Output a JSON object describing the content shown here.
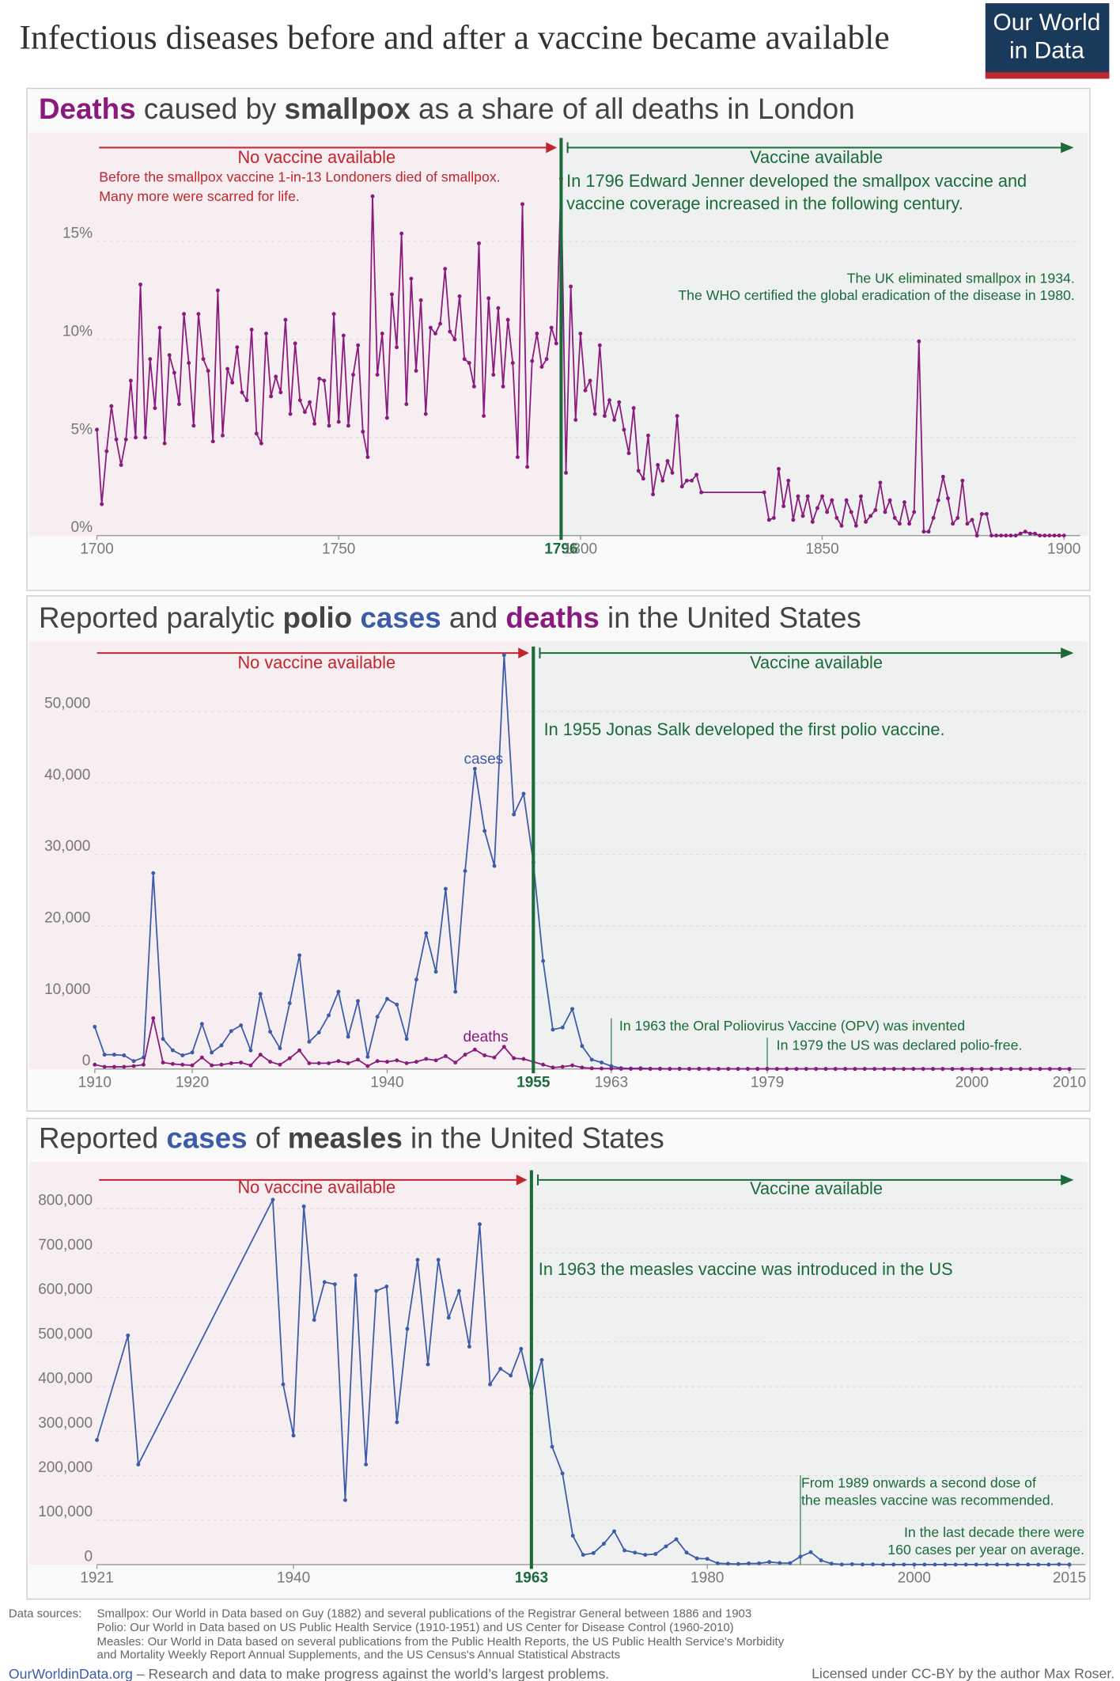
{
  "title": "Infectious diseases before and after a vaccine became available",
  "logo": {
    "line1": "Our World",
    "line2": "in Data"
  },
  "chart_data": [
    {
      "type": "line",
      "title": [
        {
          "text": "Deaths",
          "bold": true,
          "color": "#8b1a7e"
        },
        {
          "text": " caused by "
        },
        {
          "text": "smallpox",
          "bold": true
        },
        {
          "text": " as a share of all deaths in London"
        }
      ],
      "x": [
        1700,
        1701,
        1702,
        1703,
        1704,
        1705,
        1706,
        1707,
        1708,
        1709,
        1710,
        1711,
        1712,
        1713,
        1714,
        1715,
        1716,
        1717,
        1718,
        1719,
        1720,
        1721,
        1722,
        1723,
        1724,
        1725,
        1726,
        1727,
        1728,
        1729,
        1730,
        1731,
        1732,
        1733,
        1734,
        1735,
        1736,
        1737,
        1738,
        1739,
        1740,
        1741,
        1742,
        1743,
        1744,
        1745,
        1746,
        1747,
        1748,
        1749,
        1750,
        1751,
        1752,
        1753,
        1754,
        1755,
        1756,
        1757,
        1758,
        1759,
        1760,
        1761,
        1762,
        1763,
        1764,
        1765,
        1766,
        1767,
        1768,
        1769,
        1770,
        1771,
        1772,
        1773,
        1774,
        1775,
        1776,
        1777,
        1778,
        1779,
        1780,
        1781,
        1782,
        1783,
        1784,
        1785,
        1786,
        1787,
        1788,
        1789,
        1790,
        1791,
        1792,
        1793,
        1794,
        1795,
        1796,
        1797,
        1798,
        1799,
        1800,
        1801,
        1802,
        1803,
        1804,
        1805,
        1806,
        1807,
        1808,
        1809,
        1810,
        1811,
        1812,
        1813,
        1814,
        1815,
        1816,
        1817,
        1818,
        1819,
        1820,
        1821,
        1822,
        1823,
        1824,
        1825,
        1838,
        1839,
        1840,
        1841,
        1842,
        1843,
        1844,
        1845,
        1846,
        1847,
        1848,
        1849,
        1850,
        1851,
        1852,
        1853,
        1854,
        1855,
        1856,
        1857,
        1858,
        1859,
        1860,
        1861,
        1862,
        1863,
        1864,
        1865,
        1866,
        1867,
        1868,
        1869,
        1870,
        1871,
        1872,
        1873,
        1874,
        1875,
        1876,
        1877,
        1878,
        1879,
        1880,
        1881,
        1882,
        1883,
        1884,
        1885,
        1886,
        1887,
        1888,
        1889,
        1890,
        1891,
        1892,
        1893,
        1894,
        1895,
        1896,
        1897,
        1898,
        1899,
        1900
      ],
      "values": [
        5.4,
        1.6,
        4.3,
        6.6,
        4.9,
        3.6,
        4.9,
        7.9,
        5.0,
        12.8,
        5.0,
        9.0,
        6.5,
        10.6,
        4.7,
        9.2,
        8.3,
        6.7,
        11.3,
        8.8,
        5.6,
        11.3,
        9.0,
        8.4,
        4.8,
        12.5,
        5.1,
        8.5,
        7.8,
        9.6,
        7.3,
        6.9,
        10.5,
        5.2,
        4.7,
        10.3,
        7.1,
        8.1,
        7.3,
        11.0,
        6.2,
        9.8,
        6.9,
        6.3,
        6.8,
        5.7,
        8.0,
        7.9,
        5.6,
        11.3,
        5.8,
        10.2,
        5.6,
        8.2,
        9.7,
        5.3,
        4.0,
        17.3,
        8.2,
        10.3,
        6.0,
        12.3,
        9.6,
        15.4,
        6.7,
        13.1,
        8.4,
        12.0,
        6.2,
        10.6,
        10.3,
        10.8,
        13.6,
        10.4,
        10.0,
        12.2,
        9.0,
        8.8,
        7.6,
        14.9,
        6.1,
        12.1,
        8.2,
        11.6,
        7.6,
        11.0,
        8.8,
        4.0,
        16.9,
        3.5,
        8.9,
        10.3,
        8.6,
        9.0,
        10.6,
        9.8,
        18.2,
        3.2,
        12.7,
        5.9,
        10.3,
        7.4,
        7.9,
        6.2,
        9.7,
        6.1,
        6.9,
        5.9,
        6.8,
        5.4,
        4.2,
        6.5,
        3.3,
        2.9,
        5.1,
        2.1,
        3.6,
        2.8,
        3.8,
        3.2,
        6.1,
        2.5,
        2.8,
        2.8,
        3.1,
        2.2,
        2.2,
        0.8,
        0.9,
        3.4,
        1.5,
        2.8,
        0.8,
        2.0,
        1.0,
        2.0,
        0.7,
        1.4,
        2.0,
        1.2,
        1.8,
        0.9,
        0.5,
        1.8,
        1.2,
        0.5,
        2.0,
        0.7,
        1.0,
        1.3,
        2.7,
        1.2,
        1.8,
        0.9,
        0.6,
        1.7,
        0.6,
        1.2,
        9.9,
        0.2,
        0.2,
        0.9,
        1.8,
        3.0,
        1.9,
        0.6,
        0.9,
        2.8,
        0.6,
        0.8,
        0.0,
        1.1,
        1.1,
        0.0,
        0.0,
        0.0,
        0.0,
        0.0,
        0.0,
        0.1,
        0.2,
        0.1,
        0.1,
        0.0,
        0.0,
        0.0,
        0.0,
        0.0,
        0.0
      ],
      "color": "#8b1a7e",
      "xlim": [
        1700,
        1900
      ],
      "xticks": [
        1700,
        1750,
        1796,
        1800,
        1850,
        1900
      ],
      "ylim": [
        0,
        20
      ],
      "yticks": [
        {
          "value": 0,
          "label": "0%"
        },
        {
          "value": 5,
          "label": "5%"
        },
        {
          "value": 10,
          "label": "10%"
        },
        {
          "value": 15,
          "label": "15%"
        }
      ],
      "grid": true,
      "vaccine_year": 1796,
      "annotations": [
        {
          "lines": [
            "No vaccine available"
          ],
          "color": "#c0262d"
        },
        {
          "lines": [
            "Vaccine available"
          ],
          "color": "#1b6b3a"
        },
        {
          "lines": [
            "Before the smallpox vaccine 1-in-13 Londoners died of smallpox.",
            "Many more were scarred for life."
          ],
          "color": "#c0262d"
        },
        {
          "lines": [
            "In 1796 Edward Jenner developed the smallpox vaccine and",
            "vaccine coverage increased in the following century."
          ],
          "color": "#1b6b3a"
        },
        {
          "lines": [
            "The UK eliminated smallpox in 1934.",
            "The WHO certified the global eradication of the disease in 1980."
          ],
          "color": "#1b6b3a"
        }
      ]
    },
    {
      "type": "line",
      "title": [
        {
          "text": "Reported paralytic "
        },
        {
          "text": "polio",
          "bold": true
        },
        {
          "text": " cases",
          "bold": true,
          "color": "#3c5ba8"
        },
        {
          "text": " and "
        },
        {
          "text": "deaths",
          "bold": true,
          "color": "#8b1a7e"
        },
        {
          "text": " in the United States"
        }
      ],
      "x": [
        1910,
        1911,
        1912,
        1913,
        1914,
        1915,
        1916,
        1917,
        1918,
        1919,
        1920,
        1921,
        1922,
        1923,
        1924,
        1925,
        1926,
        1927,
        1928,
        1929,
        1930,
        1931,
        1932,
        1933,
        1934,
        1935,
        1936,
        1937,
        1938,
        1939,
        1940,
        1941,
        1942,
        1943,
        1944,
        1945,
        1946,
        1947,
        1948,
        1949,
        1950,
        1951,
        1952,
        1953,
        1954,
        1955,
        1956,
        1957,
        1958,
        1959,
        1960,
        1961,
        1962,
        1963,
        1964,
        1965,
        1966,
        1967,
        1968,
        1969,
        1970,
        1971,
        1972,
        1973,
        1974,
        1975,
        1976,
        1977,
        1978,
        1979,
        1980,
        1981,
        1982,
        1983,
        1984,
        1985,
        1986,
        1987,
        1988,
        1989,
        1990,
        1991,
        1992,
        1993,
        1994,
        1995,
        1996,
        1997,
        1998,
        1999,
        2000,
        2001,
        2002,
        2003,
        2004,
        2005,
        2006,
        2007,
        2008,
        2009,
        2010
      ],
      "series": [
        {
          "name": "cases",
          "color": "#3c5ba8",
          "values": [
            5900,
            2000,
            2000,
            1900,
            1100,
            1600,
            27400,
            4200,
            2600,
            1900,
            2300,
            6300,
            2300,
            3300,
            5300,
            6100,
            2600,
            10500,
            5200,
            2900,
            9200,
            15900,
            3800,
            5100,
            7500,
            10800,
            4500,
            9500,
            1700,
            7300,
            9800,
            9000,
            4200,
            12500,
            19000,
            13600,
            25200,
            10800,
            27700,
            42000,
            33300,
            28400,
            57900,
            35600,
            38500,
            28900,
            15100,
            5500,
            5800,
            8400,
            3200,
            1300,
            900,
            400,
            120,
            70,
            110,
            40,
            50,
            20,
            30,
            20,
            30,
            10,
            10,
            10,
            10,
            20,
            20,
            30,
            10,
            10,
            10,
            10,
            10,
            10,
            10,
            10,
            10,
            10,
            10,
            10,
            10,
            10,
            10,
            10,
            10,
            10,
            0,
            0,
            0,
            0,
            0,
            0,
            0,
            0,
            0,
            0,
            0,
            0,
            0
          ]
        },
        {
          "name": "deaths",
          "color": "#8b1a7e",
          "values": [
            600,
            300,
            300,
            300,
            400,
            600,
            7100,
            900,
            700,
            600,
            500,
            1600,
            500,
            600,
            800,
            900,
            500,
            2000,
            1000,
            600,
            1500,
            2600,
            800,
            800,
            800,
            1100,
            800,
            1300,
            400,
            1100,
            1000,
            1200,
            800,
            1000,
            1400,
            1200,
            1800,
            900,
            2000,
            2700,
            1900,
            1600,
            3100,
            1500,
            1400,
            1000,
            600,
            200,
            300,
            500,
            200,
            90,
            60,
            40,
            20,
            15,
            10,
            5,
            5,
            5,
            5,
            5,
            5,
            5,
            5,
            5,
            5,
            5,
            5,
            5,
            0,
            0,
            0,
            0,
            0,
            0,
            0,
            0,
            0,
            0,
            0,
            0,
            0,
            0,
            0,
            0,
            0,
            0,
            0,
            0,
            0,
            0,
            0,
            0,
            0,
            0,
            0,
            0,
            0,
            0,
            0
          ]
        }
      ],
      "xlim": [
        1910,
        2010
      ],
      "xticks": [
        1910,
        1920,
        1940,
        1955,
        1963,
        1979,
        2000,
        2010
      ],
      "ylim": [
        0,
        60000
      ],
      "yticks": [
        0,
        {
          "value": 10000,
          "label": "10,000"
        },
        {
          "value": 20000,
          "label": "20,000"
        },
        {
          "value": 30000,
          "label": "30,000"
        },
        {
          "value": 40000,
          "label": "40,000"
        },
        {
          "value": 50000,
          "label": "50,000"
        }
      ],
      "grid": true,
      "vaccine_year": 1955,
      "annotations": [
        {
          "lines": [
            "No vaccine available"
          ],
          "color": "#c0262d"
        },
        {
          "lines": [
            "Vaccine available"
          ],
          "color": "#1b6b3a"
        },
        {
          "lines": [
            "In 1955 Jonas Salk developed the first polio vaccine."
          ],
          "color": "#1b6b3a"
        },
        {
          "lines": [
            "In 1963 the Oral Poliovirus Vaccine (OPV) was invented"
          ],
          "color": "#1b6b3a",
          "x": 1963
        },
        {
          "lines": [
            "In 1979 the US was declared polio-free."
          ],
          "color": "#1b6b3a",
          "x": 1979
        }
      ]
    },
    {
      "type": "line",
      "title": [
        {
          "text": "Reported "
        },
        {
          "text": "cases",
          "bold": true,
          "color": "#3c5ba8"
        },
        {
          "text": " of "
        },
        {
          "text": "measles",
          "bold": true
        },
        {
          "text": " in the United States"
        }
      ],
      "x": [
        1921,
        1924,
        1925,
        1938,
        1939,
        1940,
        1941,
        1942,
        1943,
        1944,
        1945,
        1946,
        1947,
        1948,
        1949,
        1950,
        1951,
        1952,
        1953,
        1954,
        1955,
        1956,
        1957,
        1958,
        1959,
        1960,
        1961,
        1962,
        1963,
        1964,
        1965,
        1966,
        1967,
        1968,
        1969,
        1970,
        1971,
        1972,
        1973,
        1974,
        1975,
        1976,
        1977,
        1978,
        1979,
        1980,
        1981,
        1982,
        1983,
        1984,
        1985,
        1986,
        1987,
        1988,
        1989,
        1990,
        1991,
        1992,
        1993,
        1994,
        1995,
        1996,
        1997,
        1998,
        1999,
        2000,
        2001,
        2002,
        2003,
        2004,
        2005,
        2006,
        2007,
        2008,
        2009,
        2010,
        2011,
        2012,
        2013,
        2014,
        2015
      ],
      "values": [
        280000,
        515000,
        225000,
        820000,
        405000,
        290000,
        805000,
        550000,
        635000,
        630000,
        145000,
        650000,
        225000,
        615000,
        625000,
        320000,
        530000,
        685000,
        450000,
        685000,
        555000,
        615000,
        490000,
        765000,
        405000,
        440000,
        425000,
        485000,
        385000,
        460000,
        265000,
        205000,
        65000,
        22000,
        26000,
        47000,
        75000,
        32000,
        27000,
        22000,
        24000,
        41000,
        57000,
        27000,
        14000,
        13000,
        3000,
        2000,
        1500,
        2600,
        2800,
        6000,
        3600,
        3400,
        18000,
        28000,
        9600,
        2200,
        300,
        1000,
        300,
        500,
        100,
        100,
        100,
        100,
        100,
        40,
        60,
        40,
        70,
        60,
        40,
        140,
        70,
        60,
        220,
        55,
        190,
        670,
        190
      ],
      "color": "#3c5ba8",
      "xlim": [
        1921,
        2015
      ],
      "xticks": [
        1921,
        1940,
        1963,
        1980,
        2000,
        2015
      ],
      "ylim": [
        0,
        850000
      ],
      "yticks": [
        0,
        {
          "value": 100000,
          "label": "100,000"
        },
        {
          "value": 200000,
          "label": "200,000"
        },
        {
          "value": 300000,
          "label": "300,000"
        },
        {
          "value": 400000,
          "label": "400,000"
        },
        {
          "value": 500000,
          "label": "500,000"
        },
        {
          "value": 600000,
          "label": "600,000"
        },
        {
          "value": 700000,
          "label": "700,000"
        },
        {
          "value": 800000,
          "label": "800,000"
        }
      ],
      "grid": true,
      "vaccine_year": 1963,
      "annotations": [
        {
          "lines": [
            "No vaccine available"
          ],
          "color": "#c0262d"
        },
        {
          "lines": [
            "Vaccine available"
          ],
          "color": "#1b6b3a"
        },
        {
          "lines": [
            "In 1963 the measles vaccine was introduced in the US"
          ],
          "color": "#1b6b3a"
        },
        {
          "lines": [
            "From 1989 onwards a second dose of",
            "the measles vaccine was recommended."
          ],
          "color": "#1b6b3a",
          "x": 1989
        },
        {
          "lines": [
            "In the last decade there were",
            "160 cases per year on average."
          ],
          "color": "#1b6b3a"
        }
      ]
    }
  ],
  "sources": {
    "label": "Data sources:",
    "lines": [
      "Smallpox: Our World in Data based on Guy (1882) and several publications of the Registrar General between 1886 and 1903",
      "Polio: Our World in Data based on US Public Health Service (1910-1951) and US Center for Disease Control (1960-2010)",
      "Measles: Our World in Data based on several publications from the Public Health Reports, the US Public Health Service's Morbidity",
      "and Mortality Weekly Report Annual Supplements, and the US Census's Annual Statistical Abstracts"
    ]
  },
  "footer": {
    "site": "OurWorldinData.org",
    "tagline": " – Research and data to make progress against the world’s largest problems.",
    "license": "Licensed under CC-BY by the author Max Roser."
  }
}
